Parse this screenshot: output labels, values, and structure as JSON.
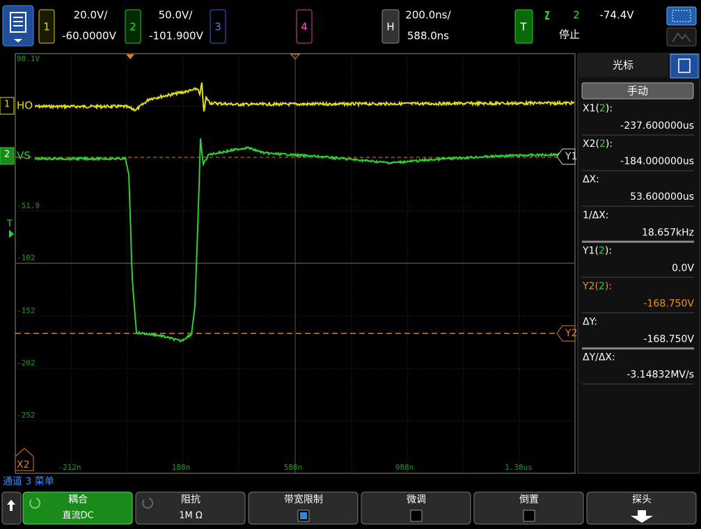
{
  "top_bar": {
    "channels": [
      {
        "number": "1",
        "scale": "20.0V/",
        "offset": "-60.0000V"
      },
      {
        "number": "2",
        "scale": "50.0V/",
        "offset": "-101.900V"
      },
      {
        "number": "3"
      },
      {
        "number": "4"
      }
    ],
    "horizontal": {
      "label": "H",
      "scale": "200.0ns/",
      "delay": "588.0ns"
    },
    "trigger": {
      "label": "T",
      "source": "2",
      "level": "-74.4V",
      "status": "停止"
    }
  },
  "display": {
    "y_labels": [
      "98.1V",
      "-51.9",
      "-102",
      "-152",
      "-202",
      "-252"
    ],
    "x_labels": [
      "-212n",
      "188n",
      "588n",
      "988n",
      "1.38us"
    ],
    "traces": [
      {
        "marker": "1",
        "label": "HO"
      },
      {
        "marker": "2",
        "label": "VS"
      }
    ],
    "cursor_markers": [
      "Y1",
      "Y2",
      "X2"
    ],
    "trigger_marker": "T"
  },
  "cursor_panel": {
    "title": "光标",
    "mode": "手动",
    "readouts": [
      {
        "prefix": "X1(",
        "source": "2",
        "suffix": "):",
        "value": "-237.600000us"
      },
      {
        "prefix": "X2(",
        "source": "2",
        "suffix": "):",
        "value": "-184.000000us"
      },
      {
        "prefix": "ΔX:",
        "value": "53.600000us"
      },
      {
        "prefix": "1/ΔX:",
        "value": "18.657kHz"
      },
      {
        "prefix": "Y1(",
        "source": "2",
        "suffix": "):",
        "value": "0.0V"
      },
      {
        "prefix": "Y2(",
        "source": "2",
        "suffix": "):",
        "value": "-168.750V"
      },
      {
        "prefix": "ΔY:",
        "value": "-168.750V"
      },
      {
        "prefix": "ΔY/ΔX:",
        "value": "-3.14832MV/s"
      }
    ]
  },
  "softkey_menu": {
    "title": "通道 3 菜单",
    "keys": [
      {
        "label": "耦合",
        "value": "直流DC"
      },
      {
        "label": "阻抗",
        "value": "1M Ω"
      },
      {
        "label": "带宽限制"
      },
      {
        "label": "微调"
      },
      {
        "label": "倒置"
      },
      {
        "label": "探头"
      }
    ]
  }
}
